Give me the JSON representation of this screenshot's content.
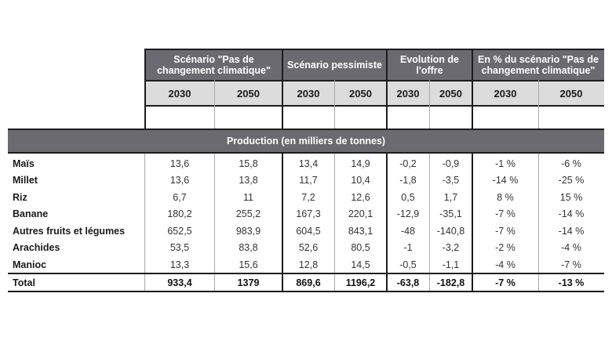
{
  "table": {
    "groups": [
      {
        "label": "Scénario \"Pas de changement climatique\""
      },
      {
        "label": "Scénario pessimiste"
      },
      {
        "label": "Evolution de l'offre"
      },
      {
        "label": "En % du scénario \"Pas de changement climatique\""
      }
    ],
    "years": [
      "2030",
      "2050",
      "2030",
      "2050",
      "2030",
      "2050",
      "2030",
      "2050"
    ],
    "section_title": "Production (en milliers de tonnes)",
    "rows": [
      {
        "label": "Maïs",
        "values": [
          "13,6",
          "15,8",
          "13,4",
          "14,9",
          "-0,2",
          "-0,9",
          "-1 %",
          "-6 %"
        ]
      },
      {
        "label": "Millet",
        "values": [
          "13,6",
          "13,8",
          "11,7",
          "10,4",
          "-1,8",
          "-3,5",
          "-14 %",
          "-25 %"
        ]
      },
      {
        "label": "Riz",
        "values": [
          "6,7",
          "11",
          "7,2",
          "12,6",
          "0,5",
          "1,7",
          "8 %",
          "15 %"
        ]
      },
      {
        "label": "Banane",
        "values": [
          "180,2",
          "255,2",
          "167,3",
          "220,1",
          "-12,9",
          "-35,1",
          "-7 %",
          "-14 %"
        ]
      },
      {
        "label": "Autres fruits et légumes",
        "values": [
          "652,5",
          "983,9",
          "604,5",
          "843,1",
          "-48",
          "-140,8",
          "-7 %",
          "-14 %"
        ]
      },
      {
        "label": "Arachides",
        "values": [
          "53,5",
          "83,8",
          "52,6",
          "80,5",
          "-1",
          "-3,2",
          "-2 %",
          "-4 %"
        ]
      },
      {
        "label": "Manioc",
        "values": [
          "13,3",
          "15,6",
          "12,8",
          "14,5",
          "-0,5",
          "-1,1",
          "-4 %",
          "-7 %"
        ]
      }
    ],
    "total": {
      "label": "Total",
      "values": [
        "933,4",
        "1379",
        "869,6",
        "1196,2",
        "-63,8",
        "-182,8",
        "-7 %",
        "-13 %"
      ]
    }
  }
}
